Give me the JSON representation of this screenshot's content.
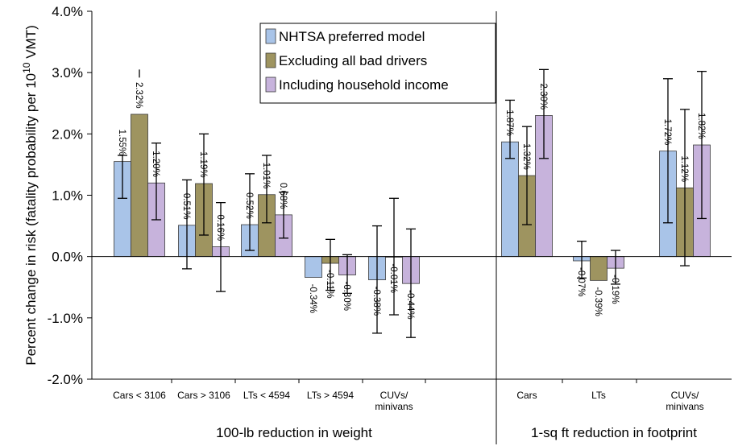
{
  "chart_data": {
    "type": "bar",
    "ylabel": "Percent change in risk (fatality probability per 10^10 VMT)",
    "ylabel_parts": [
      "Percent change in risk (fatality probability per 10",
      "10",
      " VMT)"
    ],
    "ylim": [
      -2.0,
      4.0
    ],
    "yticks": [
      "-2.0%",
      "-1.0%",
      "0.0%",
      "1.0%",
      "2.0%",
      "3.0%",
      "4.0%"
    ],
    "ytick_values": [
      -2.0,
      -1.0,
      0.0,
      1.0,
      2.0,
      3.0,
      4.0
    ],
    "categories": [
      [
        "Cars < 3106"
      ],
      [
        "Cars > 3106"
      ],
      [
        "LTs < 4594"
      ],
      [
        "LTs > 4594"
      ],
      [
        "CUVs/",
        "minivans"
      ],
      [
        "Cars"
      ],
      [
        "LTs"
      ],
      [
        "CUVs/",
        "minivans"
      ]
    ],
    "groups": [
      {
        "label": "100-lb reduction in weight",
        "categories": 5
      },
      {
        "label": "1-sq ft reduction in footprint",
        "categories": 3
      }
    ],
    "legend_position": "top-center",
    "series": [
      {
        "name": "NHTSA preferred model",
        "color": "#a9c4e8",
        "values": [
          1.55,
          0.51,
          0.52,
          -0.34,
          -0.38,
          1.87,
          -0.07,
          1.72
        ],
        "labels": [
          "1.55%",
          "0.51%",
          "0.52%",
          "-0.34%",
          "-0.38%",
          "1.87%",
          "-0.07%",
          "1.72%"
        ],
        "err_low": [
          0.95,
          -0.2,
          0.1,
          null,
          -1.25,
          1.6,
          -0.35,
          0.55
        ],
        "err_high": [
          1.65,
          1.25,
          1.35,
          null,
          0.5,
          2.55,
          0.25,
          2.9
        ]
      },
      {
        "name": "Excluding all bad drivers",
        "color": "#9e9460",
        "values": [
          2.32,
          1.19,
          1.01,
          -0.11,
          -0.01,
          1.32,
          -0.39,
          1.12
        ],
        "labels": [
          "2.32%",
          "1.19%",
          "1.01%",
          "-0.11%",
          "-0.01%",
          "1.32%",
          "-0.39%",
          "1.12%"
        ],
        "err_low": [
          null,
          0.35,
          0.55,
          -0.55,
          -0.95,
          0.52,
          null,
          -0.15
        ],
        "err_high": [
          3.05,
          2.0,
          1.65,
          0.28,
          0.95,
          2.12,
          null,
          2.4
        ]
      },
      {
        "name": "Including household income",
        "color": "#c7b3dc",
        "values": [
          1.2,
          0.16,
          0.68,
          -0.3,
          -0.44,
          2.3,
          -0.19,
          1.82
        ],
        "labels": [
          "1.20%",
          "0.16%",
          "0.68%",
          "-0.30%",
          "-0.44%",
          "2.30%",
          "-0.19%",
          "1.82%"
        ],
        "err_low": [
          0.6,
          -0.57,
          0.3,
          -0.6,
          -1.32,
          1.6,
          -0.45,
          0.62
        ],
        "err_high": [
          1.85,
          0.88,
          1.05,
          0.03,
          0.45,
          3.05,
          0.1,
          3.02
        ]
      }
    ]
  }
}
